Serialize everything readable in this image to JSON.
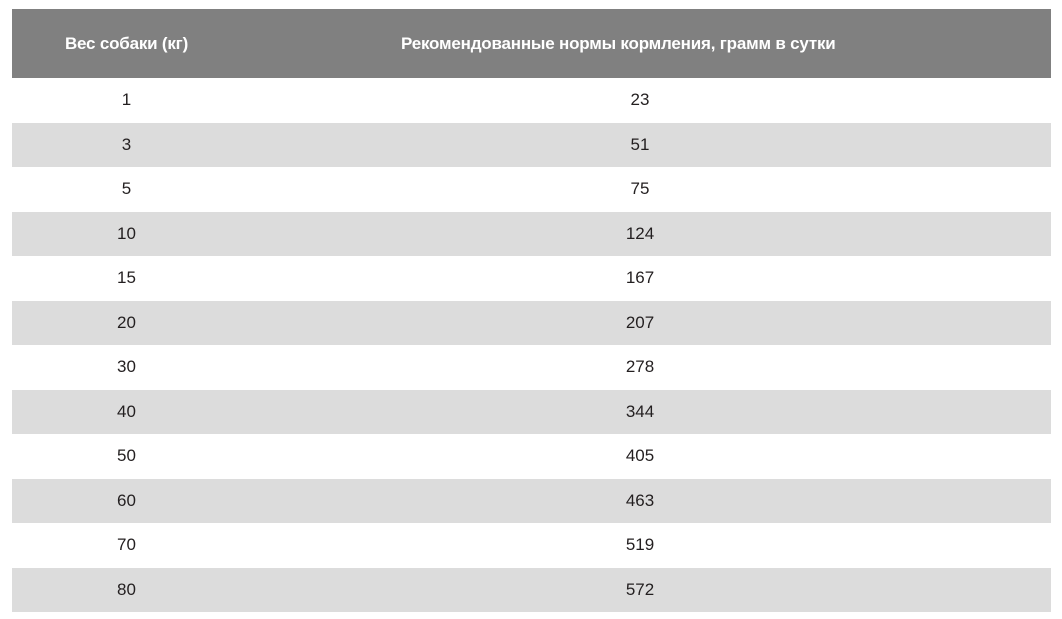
{
  "table": {
    "headers": {
      "weight": "Вес собаки (кг)",
      "norm": "Рекомендованные нормы кормления, грамм в сутки"
    },
    "rows": [
      {
        "weight": "1",
        "norm": "23"
      },
      {
        "weight": "3",
        "norm": "51"
      },
      {
        "weight": "5",
        "norm": "75"
      },
      {
        "weight": "10",
        "norm": "124"
      },
      {
        "weight": "15",
        "norm": "167"
      },
      {
        "weight": "20",
        "norm": "207"
      },
      {
        "weight": "30",
        "norm": "278"
      },
      {
        "weight": "40",
        "norm": "344"
      },
      {
        "weight": "50",
        "norm": "405"
      },
      {
        "weight": "60",
        "norm": "463"
      },
      {
        "weight": "70",
        "norm": "519"
      },
      {
        "weight": "80",
        "norm": "572"
      }
    ]
  },
  "colors": {
    "header_bg": "#808080",
    "header_text": "#ffffff",
    "stripe_bg": "#dcdcdc",
    "row_bg": "#ffffff",
    "text": "#231f20"
  }
}
